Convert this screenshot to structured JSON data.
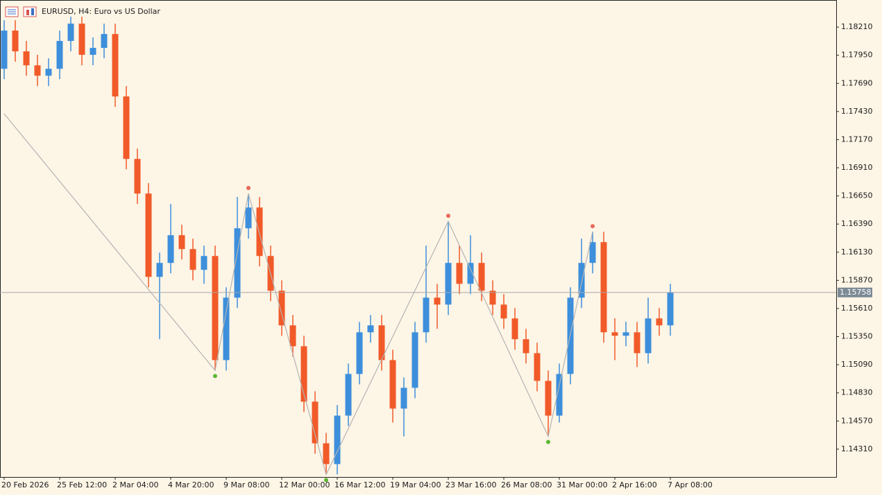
{
  "chart_data": {
    "type": "candlestick",
    "title": "EURUSD, H4:  Euro vs US Dollar",
    "up_color": "#3d8fdb",
    "down_color": "#f15a29",
    "open": [
      1.17825,
      1.18178,
      1.17986,
      1.17857,
      1.17761,
      1.17825,
      1.18082,
      1.18242,
      1.17954,
      1.18018,
      1.18146,
      1.17569,
      1.16992,
      1.16672,
      1.15902,
      1.16031,
      1.16287,
      1.16159,
      1.15967,
      1.16095,
      1.15133,
      1.1571,
      1.16351,
      1.16543,
      1.16095,
      1.15774,
      1.15454,
      1.15261,
      1.14749,
      1.14364,
      1.14172,
      1.1462,
      1.15005,
      1.1539,
      1.15454,
      1.15133,
      1.14685,
      1.14877,
      1.1539,
      1.1571,
      1.15646,
      1.16031,
      1.15838,
      1.16031,
      1.15774,
      1.15646,
      1.15518,
      1.15326,
      1.15197,
      1.14941,
      1.1462,
      1.15005,
      1.1571,
      1.16031,
      1.16223,
      1.1539,
      1.15358,
      1.1539,
      1.15197,
      1.15518,
      1.15454
    ],
    "high": [
      1.18274,
      1.18274,
      1.18082,
      1.17954,
      1.17922,
      1.18178,
      1.18306,
      1.18306,
      1.18114,
      1.18242,
      1.18242,
      1.17665,
      1.17088,
      1.16768,
      1.16127,
      1.16576,
      1.16383,
      1.16255,
      1.16191,
      1.16191,
      1.15806,
      1.1664,
      1.16672,
      1.1664,
      1.16191,
      1.1587,
      1.1555,
      1.15358,
      1.14845,
      1.1446,
      1.14717,
      1.15101,
      1.15486,
      1.1555,
      1.1555,
      1.15229,
      1.14973,
      1.15486,
      1.16191,
      1.15838,
      1.16415,
      1.16191,
      1.16287,
      1.16127,
      1.1587,
      1.15742,
      1.15614,
      1.15422,
      1.15294,
      1.15037,
      1.15101,
      1.15806,
      1.16255,
      1.16319,
      1.16319,
      1.15518,
      1.15486,
      1.15486,
      1.1571,
      1.15614,
      1.15838
    ],
    "low": [
      1.17729,
      1.1789,
      1.17761,
      1.17665,
      1.17665,
      1.17729,
      1.17986,
      1.17857,
      1.17857,
      1.17922,
      1.17473,
      1.16896,
      1.16576,
      1.15806,
      1.15326,
      1.15935,
      1.16063,
      1.1587,
      1.15838,
      1.15037,
      1.15037,
      1.15614,
      1.16255,
      1.15999,
      1.15678,
      1.15358,
      1.15165,
      1.14653,
      1.14268,
      1.14076,
      1.14076,
      1.14524,
      1.14909,
      1.15294,
      1.15037,
      1.14556,
      1.14428,
      1.14781,
      1.15294,
      1.15422,
      1.1555,
      1.15742,
      1.15742,
      1.15678,
      1.1555,
      1.15422,
      1.15229,
      1.15101,
      1.14845,
      1.14428,
      1.14556,
      1.14909,
      1.15614,
      1.15935,
      1.15294,
      1.15133,
      1.15261,
      1.15069,
      1.15101,
      1.15358,
      1.15358
    ],
    "close": [
      1.18178,
      1.17986,
      1.17857,
      1.17761,
      1.17825,
      1.18082,
      1.18242,
      1.17954,
      1.18018,
      1.18146,
      1.17569,
      1.16992,
      1.16672,
      1.15902,
      1.16031,
      1.16287,
      1.16159,
      1.15967,
      1.16095,
      1.15133,
      1.1571,
      1.16351,
      1.16543,
      1.16095,
      1.15774,
      1.15454,
      1.15261,
      1.14749,
      1.14364,
      1.14172,
      1.1462,
      1.15005,
      1.1539,
      1.15454,
      1.15133,
      1.14685,
      1.14877,
      1.1539,
      1.1571,
      1.15646,
      1.16031,
      1.15838,
      1.16031,
      1.15774,
      1.15646,
      1.15518,
      1.15326,
      1.15197,
      1.14941,
      1.1462,
      1.15005,
      1.1571,
      1.16031,
      1.16223,
      1.1539,
      1.15358,
      1.1539,
      1.15197,
      1.15518,
      1.15454,
      1.15758
    ],
    "zigzag": {
      "color": "#b4b4b4",
      "high_color": "#e8685a",
      "low_color": "#5bb832",
      "x": [
        0,
        19,
        22,
        29,
        40,
        49,
        53
      ],
      "values": [
        1.17409,
        1.15037,
        1.16672,
        1.14076,
        1.16415,
        1.14428,
        1.16319
      ]
    },
    "current_price": 1.15758,
    "ylim": [
      1.14053,
      1.18454
    ],
    "yticks": [
      {
        "value": 1.1821,
        "label": "1.18210"
      },
      {
        "value": 1.1795,
        "label": "1.17950"
      },
      {
        "value": 1.1769,
        "label": "1.17690"
      },
      {
        "value": 1.1743,
        "label": "1.17430"
      },
      {
        "value": 1.1717,
        "label": "1.17170"
      },
      {
        "value": 1.1691,
        "label": "1.16910"
      },
      {
        "value": 1.1665,
        "label": "1.16650"
      },
      {
        "value": 1.1639,
        "label": "1.16390"
      },
      {
        "value": 1.1613,
        "label": "1.16130"
      },
      {
        "value": 1.1587,
        "label": "1.15870"
      },
      {
        "value": 1.1561,
        "label": "1.15610"
      },
      {
        "value": 1.1535,
        "label": "1.15350"
      },
      {
        "value": 1.1509,
        "label": "1.15090"
      },
      {
        "value": 1.1483,
        "label": "1.14830"
      },
      {
        "value": 1.1457,
        "label": "1.14570"
      },
      {
        "value": 1.1431,
        "label": "1.14310"
      }
    ],
    "xticks": [
      {
        "value": 0,
        "label": "20 Feb 2026"
      },
      {
        "value": 5,
        "label": "25 Feb 12:00"
      },
      {
        "value": 10,
        "label": "2 Mar 04:00"
      },
      {
        "value": 15,
        "label": "4 Mar 20:00"
      },
      {
        "value": 20,
        "label": "9 Mar 08:00"
      },
      {
        "value": 25,
        "label": "12 Mar 00:00"
      },
      {
        "value": 30,
        "label": "16 Mar 12:00"
      },
      {
        "value": 35,
        "label": "19 Mar 04:00"
      },
      {
        "value": 40,
        "label": "23 Mar 16:00"
      },
      {
        "value": 45,
        "label": "26 Mar 08:00"
      },
      {
        "value": 50,
        "label": "31 Mar 00:00"
      },
      {
        "value": 55,
        "label": "2 Apr 16:00"
      },
      {
        "value": 60,
        "label": "7 Apr 08:00"
      }
    ]
  }
}
